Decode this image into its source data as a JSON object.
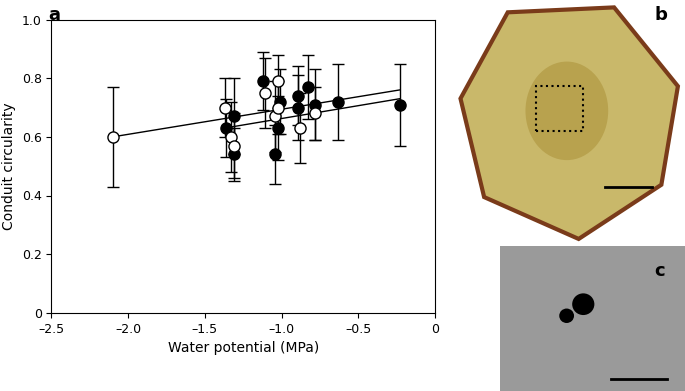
{
  "chart_data": {
    "type": "scatter",
    "panel_label": "a",
    "x_label": "Water potential (MPa)",
    "y_label": "Conduit circularity",
    "xlim": [
      -2.5,
      0
    ],
    "ylim": [
      0,
      1.0
    ],
    "xticks": [
      {
        "value": -2.5,
        "label": "–2.5"
      },
      {
        "value": -2.0,
        "label": "–2.0"
      },
      {
        "value": -1.5,
        "label": "–1.5"
      },
      {
        "value": -1.0,
        "label": "–1.0"
      },
      {
        "value": -0.5,
        "label": "–0.5"
      },
      0
    ],
    "yticks": [
      0,
      0.2,
      0.4,
      0.6,
      0.8,
      1.0
    ],
    "grid": false,
    "series": [
      {
        "type": "scatter",
        "color": "#000000",
        "marker": "filled",
        "x": [
          -1.36,
          -1.31,
          -1.31,
          -1.12,
          -1.04,
          -1.02,
          -1.01,
          -0.89,
          -0.89,
          -0.83,
          -0.78,
          -0.63,
          -0.23
        ],
        "values": [
          0.63,
          0.67,
          0.54,
          0.79,
          0.54,
          0.63,
          0.72,
          0.74,
          0.7,
          0.77,
          0.71,
          0.72,
          0.71
        ],
        "errors": [
          0.1,
          0.13,
          0.09,
          0.1,
          0.1,
          0.11,
          0.11,
          0.1,
          0.11,
          0.11,
          0.12,
          0.13,
          0.14
        ]
      },
      {
        "type": "scatter",
        "color": "#000000",
        "marker": "open",
        "x": [
          -2.1,
          -1.37,
          -1.33,
          -1.31,
          -1.11,
          -1.04,
          -1.02,
          -1.02,
          -0.88,
          -0.78
        ],
        "values": [
          0.6,
          0.7,
          0.6,
          0.57,
          0.75,
          0.67,
          0.7,
          0.79,
          0.63,
          0.68
        ],
        "errors": [
          0.17,
          0.1,
          0.12,
          0.11,
          0.12,
          0.12,
          0.09,
          0.09,
          0.12,
          0.09
        ]
      },
      {
        "type": "line",
        "color": "#000000",
        "line_style": "solid",
        "x": [
          -2.1,
          -0.23
        ],
        "values": [
          0.6,
          0.76
        ]
      },
      {
        "type": "line",
        "color": "#000000",
        "line_style": "solid",
        "x": [
          -1.37,
          -0.23
        ],
        "values": [
          0.63,
          0.73
        ]
      }
    ]
  },
  "images": [
    {
      "panel_label": "b"
    },
    {
      "panel_label": "c"
    }
  ]
}
